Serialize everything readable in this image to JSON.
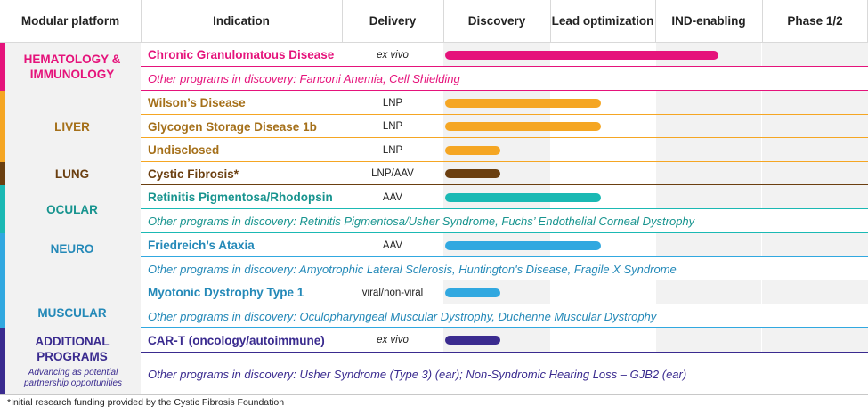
{
  "headers": {
    "platform": "Modular platform",
    "indication": "Indication",
    "delivery": "Delivery",
    "phases": [
      "Discovery",
      "Lead optimization",
      "IND-enabling",
      "Phase 1/2"
    ]
  },
  "colors": {
    "hematology": "#e5137b",
    "liver": "#f5a623",
    "lung": "#6b3f10",
    "ocular": "#1bb9b4",
    "neuro": "#31a8e0",
    "additional": "#3a2b8f",
    "liver_text": "#a5701a"
  },
  "platforms": [
    {
      "key": "hematology",
      "label": "HEMATOLOGY & IMMUNOLOGY"
    },
    {
      "key": "liver",
      "label": "LIVER"
    },
    {
      "key": "lung",
      "label": "LUNG"
    },
    {
      "key": "ocular",
      "label": "OCULAR"
    },
    {
      "key": "neuro",
      "label": "NEURO"
    },
    {
      "key": "muscular",
      "label": "MUSCULAR"
    },
    {
      "key": "additional",
      "label": "ADDITIONAL PROGRAMS",
      "subtitle": "Advancing as potential partnership opportunities"
    }
  ],
  "chart_data": {
    "type": "table",
    "stages": [
      "Discovery",
      "Lead optimization",
      "IND-enabling",
      "Phase 1/2"
    ],
    "programs": [
      {
        "platform": "HEMATOLOGY & IMMUNOLOGY",
        "indication": "Chronic Granulomatous Disease",
        "delivery": "ex vivo",
        "progress_stages": 2.6
      },
      {
        "platform": "HEMATOLOGY & IMMUNOLOGY",
        "other": "Other programs in discovery: Fanconi Anemia, Cell Shielding"
      },
      {
        "platform": "LIVER",
        "indication": "Wilson’s Disease",
        "delivery": "LNP",
        "progress_stages": 1.5
      },
      {
        "platform": "LIVER",
        "indication": "Glycogen Storage Disease 1b",
        "delivery": "LNP",
        "progress_stages": 1.5
      },
      {
        "platform": "LIVER",
        "indication": "Undisclosed",
        "delivery": "LNP",
        "progress_stages": 0.55
      },
      {
        "platform": "LUNG",
        "indication": "Cystic Fibrosis*",
        "delivery": "LNP/AAV",
        "progress_stages": 0.55
      },
      {
        "platform": "OCULAR",
        "indication": "Retinitis Pigmentosa/Rhodopsin",
        "delivery": "AAV",
        "progress_stages": 1.5
      },
      {
        "platform": "OCULAR",
        "other": "Other programs in discovery: Retinitis Pigmentosa/Usher Syndrome, Fuchs’ Endothelial Corneal Dystrophy"
      },
      {
        "platform": "NEURO",
        "indication": "Friedreich’s Ataxia",
        "delivery": "AAV",
        "progress_stages": 1.5
      },
      {
        "platform": "NEURO",
        "other": "Other programs in discovery: Amyotrophic Lateral Sclerosis, Huntington's Disease, Fragile X Syndrome"
      },
      {
        "platform": "MUSCULAR",
        "indication": "Myotonic Dystrophy Type 1",
        "delivery": "viral/non-viral",
        "progress_stages": 0.55
      },
      {
        "platform": "MUSCULAR",
        "other": "Other programs in discovery: Oculopharyngeal Muscular Dystrophy, Duchenne Muscular Dystrophy"
      },
      {
        "platform": "ADDITIONAL PROGRAMS",
        "indication": "CAR-T (oncology/autoimmune)",
        "delivery": "ex vivo",
        "progress_stages": 0.55
      },
      {
        "platform": "ADDITIONAL PROGRAMS",
        "other": "Other programs in discovery: Usher Syndrome (Type 3) (ear); Non-Syndromic Hearing Loss – GJB2 (ear)"
      }
    ]
  },
  "footnote": "*Initial research funding provided by the Cystic Fibrosis Foundation"
}
